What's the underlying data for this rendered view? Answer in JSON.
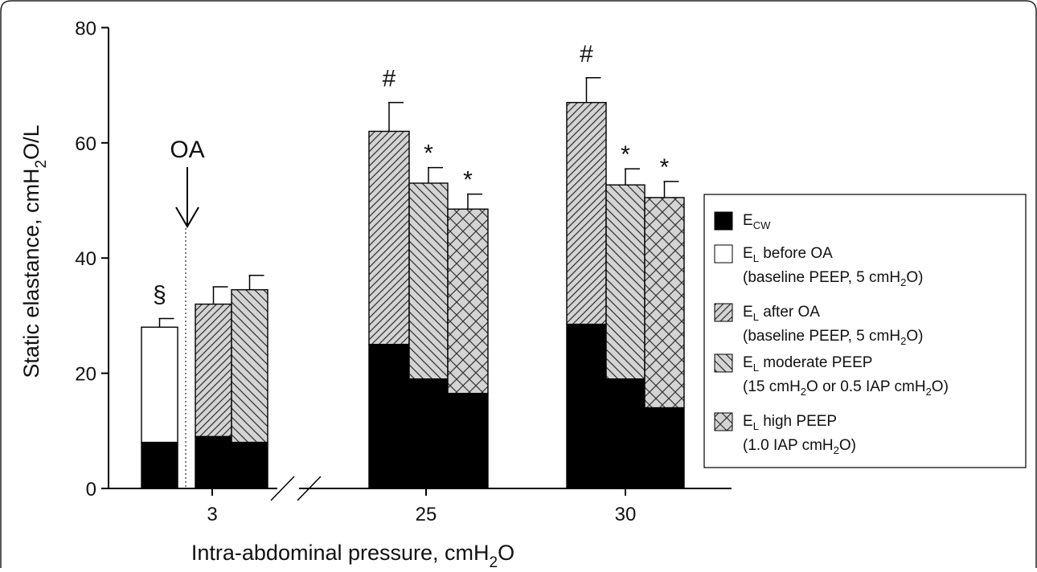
{
  "chart_data": {
    "type": "bar",
    "stacked": true,
    "ylabel": {
      "main": "Static elastance, cmH",
      "sub": "2",
      "tail": "O/L"
    },
    "xlabel": {
      "main": "Intra-abdominal pressure, cmH",
      "sub": "2",
      "tail": "O"
    },
    "ylim": [
      0,
      80
    ],
    "yticks": [
      0,
      20,
      40,
      60,
      80
    ],
    "x_axis_break": true,
    "groups": [
      {
        "label": "3",
        "marker": "OA"
      },
      {
        "label": "25"
      },
      {
        "label": "30"
      }
    ],
    "bars": [
      {
        "group": "3",
        "condition": "before_oa",
        "ecw": 8,
        "total": 28,
        "err": 1.5,
        "sig": "§"
      },
      {
        "group": "3",
        "condition": "after_oa",
        "ecw": 9,
        "total": 32,
        "err": 3,
        "sig": ""
      },
      {
        "group": "3",
        "condition": "moderate_peep",
        "ecw": 8,
        "total": 34.5,
        "err": 2.5,
        "sig": ""
      },
      {
        "group": "25",
        "condition": "after_oa",
        "ecw": 25,
        "total": 62,
        "err": 5,
        "sig": "#"
      },
      {
        "group": "25",
        "condition": "moderate_peep",
        "ecw": 19,
        "total": 53,
        "err": 2.7,
        "sig": "*"
      },
      {
        "group": "25",
        "condition": "high_peep",
        "ecw": 16.5,
        "total": 48.5,
        "err": 2.6,
        "sig": "*"
      },
      {
        "group": "30",
        "condition": "after_oa",
        "ecw": 28.5,
        "total": 67,
        "err": 4.3,
        "sig": "#"
      },
      {
        "group": "30",
        "condition": "moderate_peep",
        "ecw": 19,
        "total": 52.7,
        "err": 2.8,
        "sig": "*"
      },
      {
        "group": "30",
        "condition": "high_peep",
        "ecw": 14,
        "total": 50.5,
        "err": 2.8,
        "sig": "*"
      }
    ],
    "legend": {
      "position": "right",
      "entries": [
        {
          "key": "ecw",
          "pattern": "solid-black",
          "label_main": "E",
          "label_sub": "CW",
          "line2": ""
        },
        {
          "key": "before_oa",
          "pattern": "white",
          "label_main": "E",
          "label_sub": "L",
          "label_tail": " before OA",
          "line2_pre": "(baseline PEEP, 5 cmH",
          "line2_sub": "2",
          "line2_post": "O)"
        },
        {
          "key": "after_oa",
          "pattern": "hatch-right",
          "label_main": "E",
          "label_sub": "L",
          "label_tail": " after OA",
          "line2_pre": "(baseline PEEP, 5 cmH",
          "line2_sub": "2",
          "line2_post": "O)"
        },
        {
          "key": "moderate_peep",
          "pattern": "hatch-left",
          "label_main": "E",
          "label_sub": "L",
          "label_tail": " moderate PEEP",
          "line2_pre": "(15 cmH",
          "line2_sub": "2",
          "line2_post": "O or 0.5 IAP cmH",
          "line2_sub2": "2",
          "line2_post2": "O)"
        },
        {
          "key": "high_peep",
          "pattern": "crosshatch",
          "label_main": "E",
          "label_sub": "L",
          "label_tail": " high PEEP",
          "line2_pre": "(1.0 IAP cmH",
          "line2_sub": "2",
          "line2_post": "O)"
        }
      ]
    },
    "colors": {
      "ecw": "#000000",
      "fill_grey": "#d4d4d4",
      "hatch": "#333333",
      "border": "#000000"
    }
  }
}
